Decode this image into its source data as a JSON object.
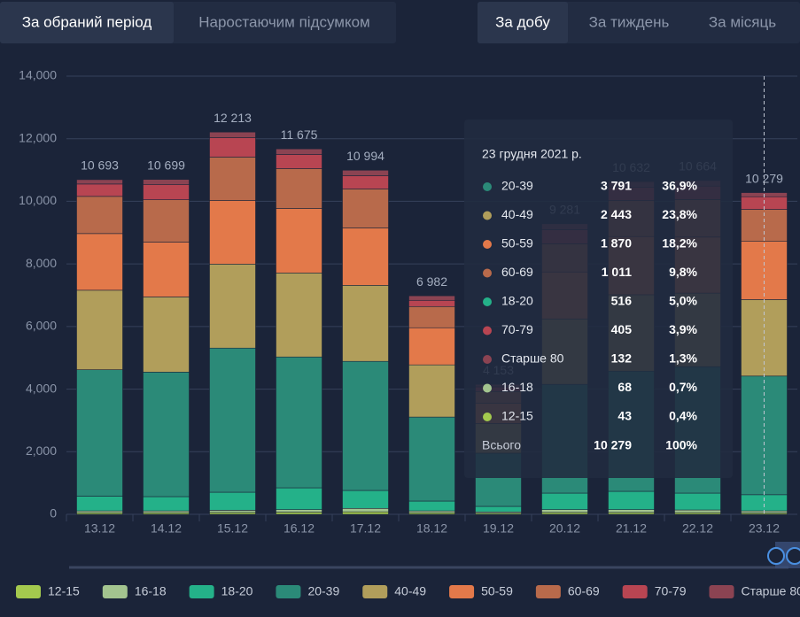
{
  "tabs_left": [
    "За обраний період",
    "Наростаючим підсумком"
  ],
  "tabs_right": [
    "За добу",
    "За тиждень",
    "За місяць"
  ],
  "chart_data": {
    "type": "stacked-bar",
    "categories": [
      "13.12",
      "14.12",
      "15.12",
      "16.12",
      "17.12",
      "18.12",
      "19.12",
      "20.12",
      "21.12",
      "22.12",
      "23.12"
    ],
    "series": [
      {
        "name": "12-15",
        "color": "#a4c94e",
        "values": [
          50,
          50,
          60,
          70,
          80,
          50,
          40,
          60,
          60,
          55,
          43
        ]
      },
      {
        "name": "16-18",
        "color": "#a3c48f",
        "values": [
          60,
          60,
          70,
          80,
          110,
          60,
          40,
          90,
          90,
          85,
          68
        ]
      },
      {
        "name": "18-20",
        "color": "#24b189",
        "values": [
          470,
          455,
          576,
          697,
          573,
          314,
          174,
          528,
          585,
          538,
          516
        ]
      },
      {
        "name": "20-39",
        "color": "#2b8a78",
        "values": [
          4040,
          3980,
          4605,
          4181,
          4124,
          2684,
          1700,
          3475,
          3840,
          4040,
          3791
        ]
      },
      {
        "name": "40-49",
        "color": "#b19e5b",
        "values": [
          2540,
          2400,
          2684,
          2684,
          2429,
          1667,
          950,
          2090,
          2440,
          2350,
          2443
        ]
      },
      {
        "name": "50-59",
        "color": "#e3794a",
        "values": [
          1810,
          1750,
          2034,
          2062,
          1836,
          1186,
          640,
          1500,
          1860,
          1790,
          1870
        ]
      },
      {
        "name": "60-69",
        "color": "#b86a4b",
        "values": [
          1188,
          1355,
          1384,
          1271,
          1243,
          678,
          380,
          900,
          1150,
          1200,
          1011
        ]
      },
      {
        "name": "70-79",
        "color": "#b84552",
        "values": [
          395,
          480,
          621,
          452,
          424,
          198,
          150,
          450,
          430,
          430,
          405
        ]
      },
      {
        "name": "Старше 80",
        "color": "#8b4352",
        "values": [
          140,
          169,
          179,
          178,
          175,
          145,
          79,
          188,
          177,
          176,
          132
        ]
      }
    ],
    "totals": [
      10693,
      10699,
      12213,
      11675,
      10994,
      6982,
      4153,
      9281,
      10632,
      10664,
      10279
    ],
    "value_labels": [
      "10 693",
      "10 699",
      "12 213",
      "11 675",
      "10 994",
      "6 982",
      "4 153",
      "9 281",
      "10 632",
      "10 664",
      "10 279"
    ],
    "ylim": [
      0,
      14000
    ],
    "yticks": [
      0,
      {
        "value": 2000,
        "label": "2,000"
      },
      {
        "value": 4000,
        "label": "4,000"
      },
      {
        "value": 6000,
        "label": "6,000"
      },
      {
        "value": 8000,
        "label": "8,000"
      },
      {
        "value": 10000,
        "label": "10,000"
      },
      {
        "value": 12000,
        "label": "12,000"
      },
      {
        "value": 14000,
        "label": "14,000"
      }
    ],
    "grid": true
  },
  "tooltip": {
    "title": "23 грудня 2021 р.",
    "rows": [
      {
        "name": "20-39",
        "value": "3 791",
        "percent": "36,9%"
      },
      {
        "name": "40-49",
        "value": "2 443",
        "percent": "23,8%"
      },
      {
        "name": "50-59",
        "value": "1 870",
        "percent": "18,2%"
      },
      {
        "name": "60-69",
        "value": "1 011",
        "percent": "9,8%"
      },
      {
        "name": "18-20",
        "value": "516",
        "percent": "5,0%"
      },
      {
        "name": "70-79",
        "value": "405",
        "percent": "3,9%"
      },
      {
        "name": "Старше 80",
        "value": "132",
        "percent": "1,3%"
      },
      {
        "name": "16-18",
        "value": "68",
        "percent": "0,7%"
      },
      {
        "name": "12-15",
        "value": "43",
        "percent": "0,4%"
      }
    ],
    "total": {
      "name": "Всього",
      "value": "10 279",
      "percent": "100%"
    }
  }
}
